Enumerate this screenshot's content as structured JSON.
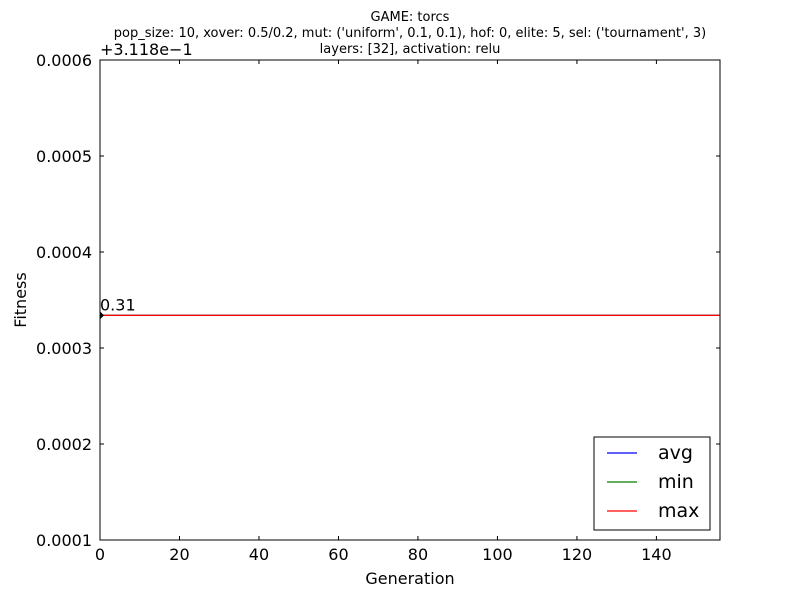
{
  "chart_data": {
    "type": "line",
    "title_lines": [
      "GAME: torcs",
      "pop_size: 10, xover: 0.5/0.2, mut: ('uniform', 0.1, 0.1), hof: 0, elite: 5, sel: ('tournament', 3)",
      "layers: [32], activation: relu"
    ],
    "xlabel": "Generation",
    "ylabel": "Fitness",
    "xlim": [
      0,
      156
    ],
    "ylim": [
      0.0001,
      0.0006
    ],
    "y_offset_label": "+3.118e−1",
    "x_ticks": [
      0,
      20,
      40,
      60,
      80,
      100,
      120,
      140
    ],
    "x_tick_labels": [
      "0",
      "20",
      "40",
      "60",
      "80",
      "100",
      "120",
      "140"
    ],
    "y_ticks": [
      0.0001,
      0.0002,
      0.0003,
      0.0004,
      0.0005,
      0.0006
    ],
    "y_tick_labels": [
      "0.0001",
      "0.0002",
      "0.0003",
      "0.0004",
      "0.0005",
      "0.0006"
    ],
    "series": [
      {
        "name": "avg",
        "color": "#0000ff",
        "x": [
          0,
          156
        ],
        "y": [
          0.000334,
          0.000334
        ]
      },
      {
        "name": "min",
        "color": "#008000",
        "x": [
          0,
          156
        ],
        "y": [
          0.000334,
          0.000334
        ]
      },
      {
        "name": "max",
        "color": "#ff0000",
        "x": [
          0,
          156
        ],
        "y": [
          0.000334,
          0.000334
        ]
      }
    ],
    "annotation": {
      "text": "0.31",
      "x": 0,
      "y": 0.000334
    },
    "legend": {
      "placement": "lower-right",
      "entries": [
        "avg",
        "min",
        "max"
      ]
    },
    "grid": false
  }
}
